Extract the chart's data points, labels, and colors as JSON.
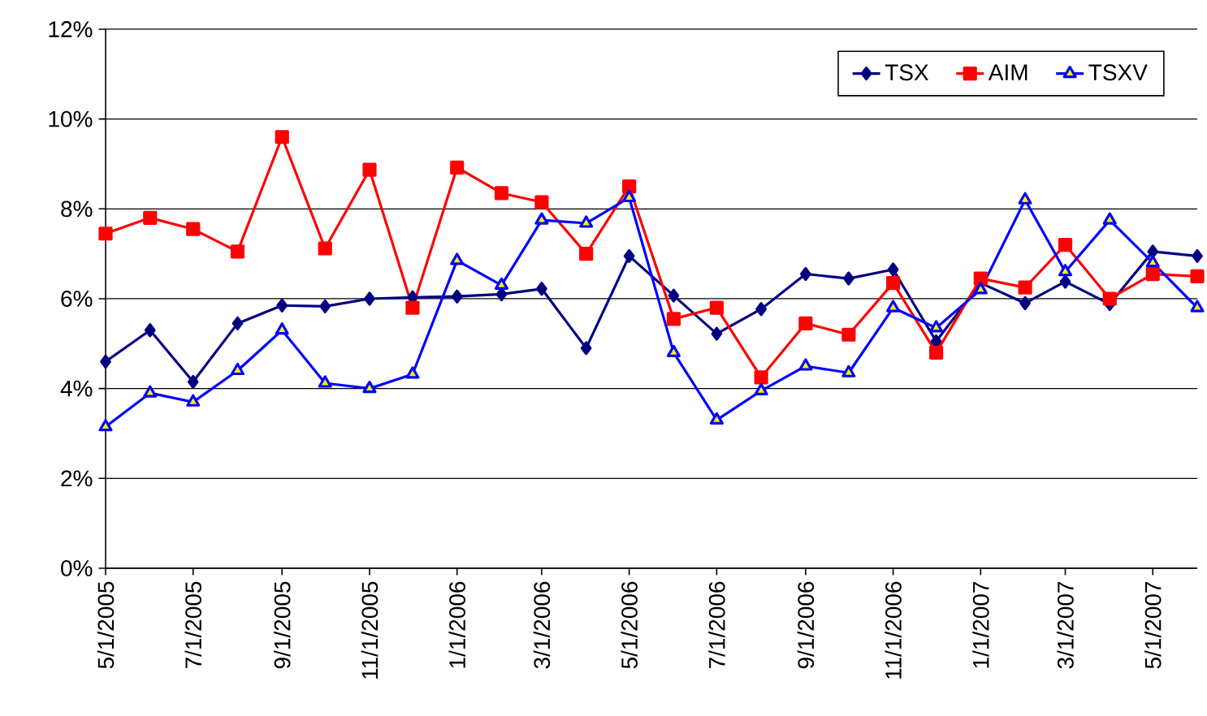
{
  "chart_data": {
    "type": "line",
    "x": [
      "2005-05-01",
      "2005-06-01",
      "2005-07-01",
      "2005-08-01",
      "2005-09-01",
      "2005-10-01",
      "2005-11-01",
      "2005-12-01",
      "2006-01-01",
      "2006-02-01",
      "2006-03-01",
      "2006-04-01",
      "2006-05-01",
      "2006-06-01",
      "2006-07-01",
      "2006-08-01",
      "2006-09-01",
      "2006-10-01",
      "2006-11-01",
      "2006-12-01",
      "2007-01-01",
      "2007-02-01",
      "2007-03-01",
      "2007-04-01",
      "2007-05-01",
      "2007-06-01"
    ],
    "series": [
      {
        "name": "TSX",
        "color": "#000080",
        "marker": "diamond",
        "values": [
          4.6,
          5.3,
          4.15,
          5.45,
          5.85,
          5.83,
          6.0,
          6.03,
          6.05,
          6.1,
          6.22,
          4.9,
          6.95,
          6.07,
          5.22,
          5.77,
          6.55,
          6.45,
          6.65,
          5.05,
          6.35,
          5.9,
          6.38,
          5.88,
          7.05,
          6.95
        ]
      },
      {
        "name": "AIM",
        "color": "#ff0000",
        "marker": "square",
        "values": [
          7.45,
          7.8,
          7.55,
          7.05,
          9.6,
          7.12,
          8.87,
          5.8,
          8.92,
          8.35,
          8.15,
          7.0,
          8.5,
          5.55,
          5.8,
          4.25,
          5.45,
          5.2,
          6.35,
          4.8,
          6.45,
          6.25,
          7.2,
          6.0,
          6.55,
          6.5
        ]
      },
      {
        "name": "TSXV",
        "color": "#0000ff",
        "marker": "triangle",
        "values": [
          3.15,
          3.9,
          3.7,
          4.4,
          5.3,
          4.12,
          4.0,
          4.32,
          6.85,
          6.3,
          7.75,
          7.68,
          8.25,
          4.8,
          3.3,
          3.95,
          4.5,
          4.35,
          5.8,
          5.35,
          6.2,
          8.2,
          6.6,
          7.75,
          6.8,
          5.8
        ]
      }
    ],
    "xlim": [
      "2005-05-01",
      "2007-06-01"
    ],
    "xticks": [
      {
        "value": "2005-05-01",
        "label": "5/1/2005"
      },
      {
        "value": "2005-07-01",
        "label": "7/1/2005"
      },
      {
        "value": "2005-09-01",
        "label": "9/1/2005"
      },
      {
        "value": "2005-11-01",
        "label": "11/1/2005"
      },
      {
        "value": "2006-01-01",
        "label": "1/1/2006"
      },
      {
        "value": "2006-03-01",
        "label": "3/1/2006"
      },
      {
        "value": "2006-05-01",
        "label": "5/1/2006"
      },
      {
        "value": "2006-07-01",
        "label": "7/1/2006"
      },
      {
        "value": "2006-09-01",
        "label": "9/1/2006"
      },
      {
        "value": "2006-11-01",
        "label": "11/1/2006"
      },
      {
        "value": "2007-01-01",
        "label": "1/1/2007"
      },
      {
        "value": "2007-03-01",
        "label": "3/1/2007"
      },
      {
        "value": "2007-05-01",
        "label": "5/1/2007"
      }
    ],
    "ylim": [
      0,
      12
    ],
    "yticks": [
      {
        "value": 0,
        "label": "0%"
      },
      {
        "value": 2,
        "label": "2%"
      },
      {
        "value": 4,
        "label": "4%"
      },
      {
        "value": 6,
        "label": "6%"
      },
      {
        "value": 8,
        "label": "8%"
      },
      {
        "value": 10,
        "label": "10%"
      },
      {
        "value": 12,
        "label": "12%"
      }
    ],
    "grid": "y",
    "legend": "top right"
  }
}
